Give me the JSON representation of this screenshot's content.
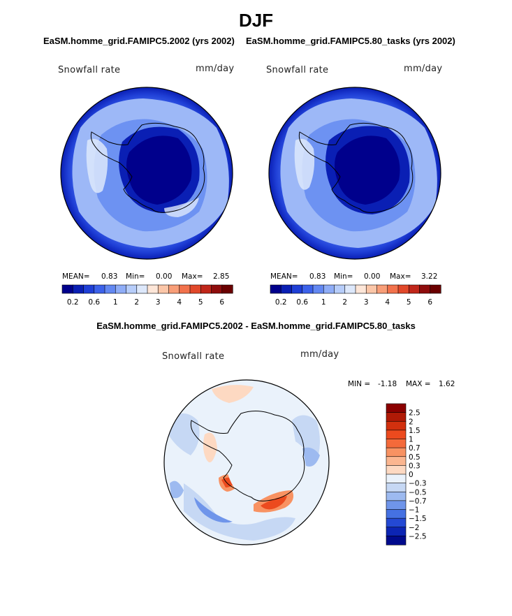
{
  "figure": {
    "title": "DJF",
    "diff_title": "EaSM.homme_grid.FAMIPC5.2002 - EaSM.homme_grid.FAMIPC5.80_tasks"
  },
  "panels": [
    {
      "subtitle": "EaSM.homme_grid.FAMIPC5.2002 (yrs 2002)",
      "variable": "Snowfall rate",
      "units": "mm/day",
      "mean_label": "MEAN=",
      "mean_value": "0.83",
      "min_label": "Min=",
      "min_value": "0.00",
      "max_label": "Max=",
      "max_value": "2.85"
    },
    {
      "subtitle": "EaSM.homme_grid.FAMIPC5.80_tasks (yrs 2002)",
      "variable": "Snowfall rate",
      "units": "mm/day",
      "mean_label": "MEAN=",
      "mean_value": "0.83",
      "min_label": "Min=",
      "min_value": "0.00",
      "max_label": "Max=",
      "max_value": "3.22"
    }
  ],
  "diff_panel": {
    "variable": "Snowfall rate",
    "units": "mm/day",
    "min_label": "MIN =",
    "min_value": "-1.18",
    "max_label": "MAX =",
    "max_value": "1.62"
  },
  "chart_data": [
    {
      "type": "heatmap",
      "projection": "south-polar-stereographic",
      "title": "EaSM.homme_grid.FAMIPC5.2002 (yrs 2002)",
      "variable": "Snowfall rate",
      "units": "mm/day",
      "colorbar": {
        "orientation": "horizontal",
        "levels": [
          0.2,
          0.4,
          0.6,
          0.8,
          1,
          1.5,
          2,
          2.5,
          3,
          3.5,
          4,
          4.5,
          5,
          5.5,
          6
        ],
        "tick_labels": [
          "0.2",
          "0.6",
          "1",
          "2",
          "3",
          "4",
          "5",
          "6"
        ],
        "colors": [
          "#00008c",
          "#0a1fb4",
          "#1f3fd6",
          "#3c62ea",
          "#6388f2",
          "#8fadf7",
          "#b7cdfa",
          "#dde8fb",
          "#fde6d8",
          "#fbc6a8",
          "#f89e78",
          "#f2724c",
          "#e1482a",
          "#c0261a",
          "#8e0c0c",
          "#6a0000"
        ]
      },
      "stats": {
        "mean": 0.83,
        "min": 0.0,
        "max": 2.85
      }
    },
    {
      "type": "heatmap",
      "projection": "south-polar-stereographic",
      "title": "EaSM.homme_grid.FAMIPC5.80_tasks (yrs 2002)",
      "variable": "Snowfall rate",
      "units": "mm/day",
      "colorbar": {
        "orientation": "horizontal",
        "levels": [
          0.2,
          0.4,
          0.6,
          0.8,
          1,
          1.5,
          2,
          2.5,
          3,
          3.5,
          4,
          4.5,
          5,
          5.5,
          6
        ],
        "tick_labels": [
          "0.2",
          "0.6",
          "1",
          "2",
          "3",
          "4",
          "5",
          "6"
        ],
        "colors": [
          "#00008c",
          "#0a1fb4",
          "#1f3fd6",
          "#3c62ea",
          "#6388f2",
          "#8fadf7",
          "#b7cdfa",
          "#dde8fb",
          "#fde6d8",
          "#fbc6a8",
          "#f89e78",
          "#f2724c",
          "#e1482a",
          "#c0261a",
          "#8e0c0c",
          "#6a0000"
        ]
      },
      "stats": {
        "mean": 0.83,
        "min": 0.0,
        "max": 3.22
      }
    },
    {
      "type": "heatmap",
      "projection": "south-polar-stereographic",
      "title": "EaSM.homme_grid.FAMIPC5.2002 - EaSM.homme_grid.FAMIPC5.80_tasks",
      "variable": "Snowfall rate",
      "units": "mm/day",
      "colorbar": {
        "orientation": "vertical",
        "tick_labels": [
          "2.5",
          "2",
          "1.5",
          "1",
          "0.7",
          "0.5",
          "0.3",
          "0",
          "−0.3",
          "−0.5",
          "−0.7",
          "−1",
          "−1.5",
          "−2",
          "−2.5"
        ],
        "colors": [
          "#8b0000",
          "#b01a06",
          "#d2300e",
          "#ec4a1e",
          "#f46a3a",
          "#f89262",
          "#fbb690",
          "#fdd9c2",
          "#eaf2fb",
          "#c6d8f4",
          "#9dbaf0",
          "#6f95ea",
          "#4571e2",
          "#2449d4",
          "#0c25b4",
          "#000a8c"
        ]
      },
      "stats": {
        "min": -1.18,
        "max": 1.62
      }
    }
  ]
}
